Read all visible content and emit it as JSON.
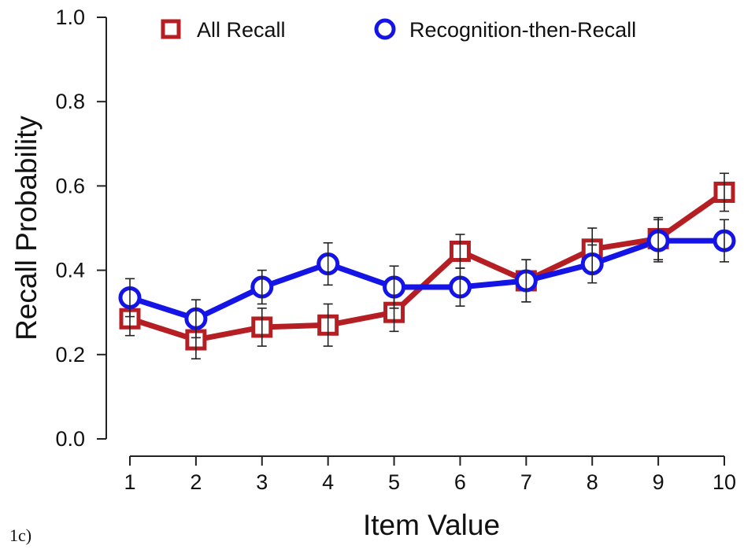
{
  "panel_label": "1c)",
  "chart_data": {
    "type": "line",
    "title": "",
    "xlabel": "Item Value",
    "ylabel": "Recall Probability",
    "categories": [
      "1",
      "2",
      "3",
      "4",
      "5",
      "6",
      "7",
      "8",
      "9",
      "10"
    ],
    "x": [
      1,
      2,
      3,
      4,
      5,
      6,
      7,
      8,
      9,
      10
    ],
    "xlim": [
      1,
      10
    ],
    "ylim": [
      0.0,
      1.0
    ],
    "yticks": [
      "0.0",
      "0.2",
      "0.4",
      "0.6",
      "0.8",
      "1.0"
    ],
    "ytick_values": [
      0.0,
      0.2,
      0.4,
      0.6,
      0.8,
      1.0
    ],
    "grid": false,
    "legend_position": "top",
    "series": [
      {
        "name": "All Recall",
        "color": "#b51f24",
        "marker": "square",
        "values": [
          0.285,
          0.235,
          0.265,
          0.27,
          0.3,
          0.445,
          0.375,
          0.45,
          0.475,
          0.585
        ],
        "error": [
          0.04,
          0.045,
          0.045,
          0.05,
          0.045,
          0.04,
          0.05,
          0.05,
          0.05,
          0.045
        ]
      },
      {
        "name": "Recognition-then-Recall",
        "color": "#1414e6",
        "marker": "circle",
        "values": [
          0.335,
          0.285,
          0.36,
          0.415,
          0.36,
          0.36,
          0.375,
          0.415,
          0.47,
          0.47
        ],
        "error": [
          0.045,
          0.045,
          0.04,
          0.05,
          0.05,
          0.045,
          0.05,
          0.045,
          0.05,
          0.05
        ]
      }
    ]
  }
}
